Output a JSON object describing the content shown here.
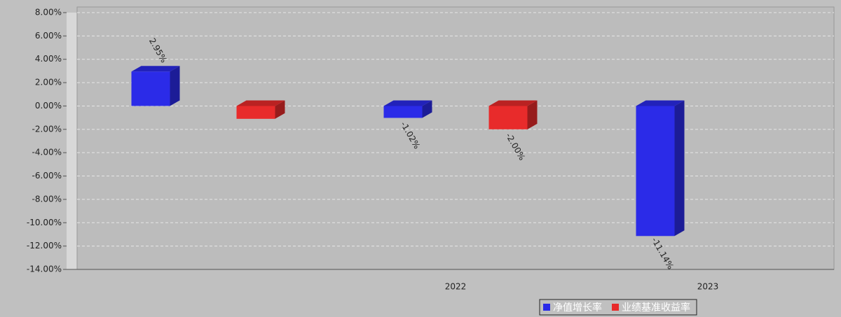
{
  "chart_data": {
    "type": "bar3d",
    "categories": [
      null,
      "2022",
      "2023"
    ],
    "series": [
      {
        "name": "净值增长率",
        "color": "#2b2be8",
        "values": [
          2.95,
          -1.02,
          -11.14
        ],
        "value_labels": [
          "2.95%",
          "-1.02%",
          "-11.14%"
        ]
      },
      {
        "name": "业绩基准收益率",
        "color": "#e82b2b",
        "values": [
          -1.1,
          -2.0,
          null
        ],
        "value_labels": [
          null,
          "-2.00%",
          null
        ]
      }
    ],
    "ylim": [
      -14,
      8
    ],
    "yticks": [
      {
        "value": 8,
        "label": "8.00%"
      },
      {
        "value": 6,
        "label": "6.00%"
      },
      {
        "value": 4,
        "label": "4.00%"
      },
      {
        "value": 2,
        "label": "2.00%"
      },
      {
        "value": 0,
        "label": "0.00%"
      },
      {
        "value": -2,
        "label": "-2.00%"
      },
      {
        "value": -4,
        "label": "-4.00%"
      },
      {
        "value": -6,
        "label": "-6.00%"
      },
      {
        "value": -8,
        "label": "-8.00%"
      },
      {
        "value": -10,
        "label": "-10.00%"
      },
      {
        "value": -12,
        "label": "-12.00%"
      },
      {
        "value": -14,
        "label": "-14.00%"
      }
    ],
    "grid": true,
    "legend": "bottom"
  }
}
